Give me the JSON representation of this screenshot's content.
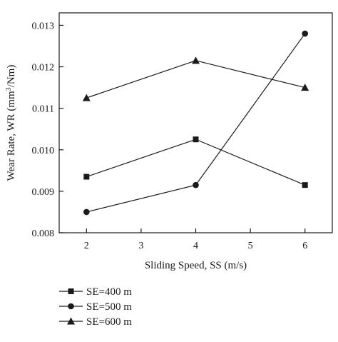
{
  "chart_data": {
    "type": "line",
    "xlabel": "Sliding Speed, SS (m/s)",
    "ylabel": {
      "prefix": "Wear Rate, WR (mm",
      "superscript": "3",
      "suffix": "/Nm)"
    },
    "xlim": [
      1.5,
      6.5
    ],
    "ylim": [
      0.008,
      0.0133
    ],
    "xticks": [
      "2",
      "3",
      "4",
      "5",
      "6"
    ],
    "yticks": [
      "0.008",
      "0.009",
      "0.010",
      "0.011",
      "0.012",
      "0.013"
    ],
    "legend_position": "bottom-left",
    "series": [
      {
        "name": "SE=400 m",
        "marker": "square",
        "x": [
          2,
          4,
          6
        ],
        "y": [
          0.00935,
          0.01025,
          0.00915
        ]
      },
      {
        "name": "SE=500 m",
        "marker": "circle",
        "x": [
          2,
          4,
          6
        ],
        "y": [
          0.0085,
          0.00915,
          0.0128
        ]
      },
      {
        "name": "SE=600 m",
        "marker": "triangle",
        "x": [
          2,
          4,
          6
        ],
        "y": [
          0.01125,
          0.01215,
          0.0115
        ]
      }
    ]
  }
}
